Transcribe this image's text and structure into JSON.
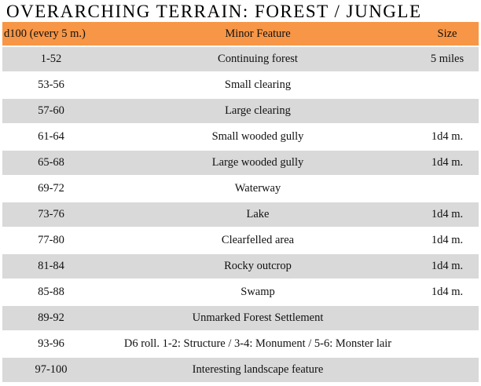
{
  "header": {
    "title": "OVERARCHING TERRAIN: FOREST / JUNGLE"
  },
  "table": {
    "columns": [
      "d100 (every 5 m.)",
      "Minor Feature",
      "Size"
    ],
    "rows": [
      [
        "1-52",
        "Continuing forest",
        "5 miles"
      ],
      [
        "53-56",
        "Small clearing"
      ],
      [
        "57-60",
        "Large clearing"
      ],
      [
        "61-64",
        "Small wooded gully",
        "1d4 m."
      ],
      [
        "65-68",
        "Large wooded gully",
        "1d4 m."
      ],
      [
        "69-72",
        "Waterway"
      ],
      [
        "73-76",
        "Lake",
        "1d4 m."
      ],
      [
        "77-80",
        "Clearfelled area",
        "1d4 m."
      ],
      [
        "81-84",
        "Rocky outcrop",
        "1d4 m."
      ],
      [
        "85-88",
        "Swamp",
        "1d4 m."
      ],
      [
        "89-92",
        "Unmarked Forest Settlement"
      ],
      [
        "93-96",
        "D6 roll. 1-2: Structure / 3-4: Monument / 5-6: Monster lair"
      ],
      [
        "97-100",
        "Interesting landscape feature"
      ]
    ]
  }
}
